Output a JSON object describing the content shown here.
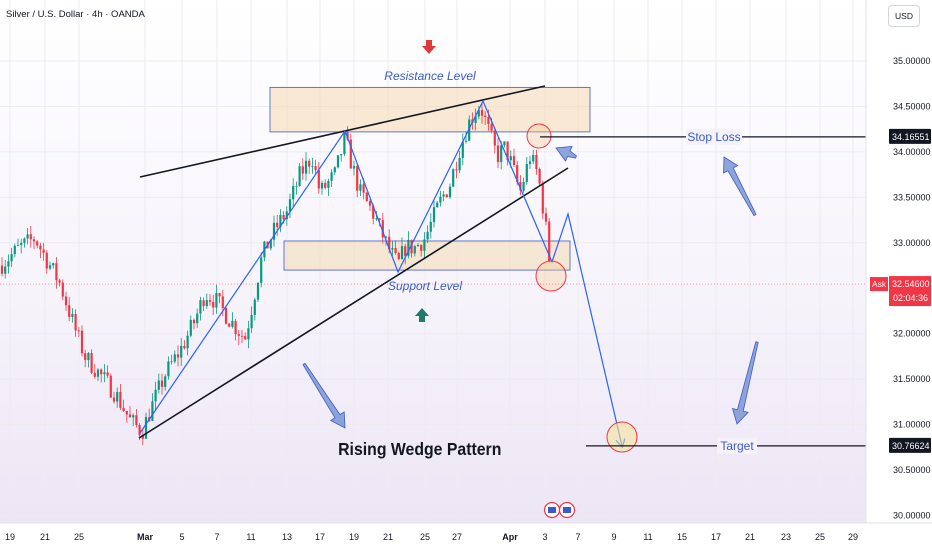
{
  "header": {
    "title": "Silver / U.S. Dollar · 4h · OANDA",
    "currency": "USD"
  },
  "colors": {
    "up": "#089981",
    "down": "#f23645",
    "wedge_line": "#131722",
    "path": "#2962ff",
    "zone_fill": "#f5d9b3",
    "zone_stroke": "#3a5bc7",
    "ask_box": "#f23645",
    "level_box": "#131722"
  },
  "chart_data": {
    "type": "candlestick",
    "symbol": "Silver / U.S. Dollar",
    "interval": "4h",
    "source": "OANDA",
    "y_axis": {
      "min": 30.0,
      "max": 35.0,
      "ticks": [
        "35.00000",
        "34.50000",
        "34.00000",
        "33.50000",
        "33.00000",
        "32.00000",
        "31.50000",
        "31.00000",
        "30.50000",
        "30.00000"
      ]
    },
    "x_axis": {
      "ticks": [
        "19",
        "21",
        "25",
        "Mar",
        "5",
        "7",
        "11",
        "13",
        "17",
        "19",
        "21",
        "25",
        "27",
        "Apr",
        "3",
        "7",
        "9",
        "11",
        "15",
        "17",
        "21",
        "23",
        "25",
        "29"
      ]
    },
    "candles_by_period": [
      {
        "date": "19",
        "close": 32.85
      },
      {
        "date": "21",
        "close": 33.05
      },
      {
        "date": "25",
        "close": 31.85
      },
      {
        "date": "Mar",
        "close": 30.95
      },
      {
        "date": "5",
        "close": 31.65
      },
      {
        "date": "7",
        "close": 32.25
      },
      {
        "date": "11",
        "close": 32.15
      },
      {
        "date": "13",
        "close": 33.3
      },
      {
        "date": "17",
        "close": 33.85
      },
      {
        "date": "19",
        "close": 33.45
      },
      {
        "date": "21",
        "close": 32.95
      },
      {
        "date": "25",
        "close": 33.15
      },
      {
        "date": "27",
        "close": 33.95
      },
      {
        "date": "Apr",
        "close": 34.15
      },
      {
        "date": "3",
        "close": 33.45
      }
    ],
    "levels": {
      "current_price": {
        "label": "Ask",
        "value": "32.54600",
        "countdown": "02:04:36"
      },
      "stop_loss": {
        "label": "Stop Loss",
        "value": "34.16551"
      },
      "target": {
        "label": "Target",
        "value": "30.76624"
      }
    },
    "annotations": {
      "resistance": "Resistance Level",
      "support": "Support Level",
      "pattern": "Rising Wedge Pattern"
    },
    "zones": {
      "resistance_zone": [
        34.22,
        34.71
      ],
      "support_zone": [
        32.7,
        33.02
      ]
    }
  }
}
